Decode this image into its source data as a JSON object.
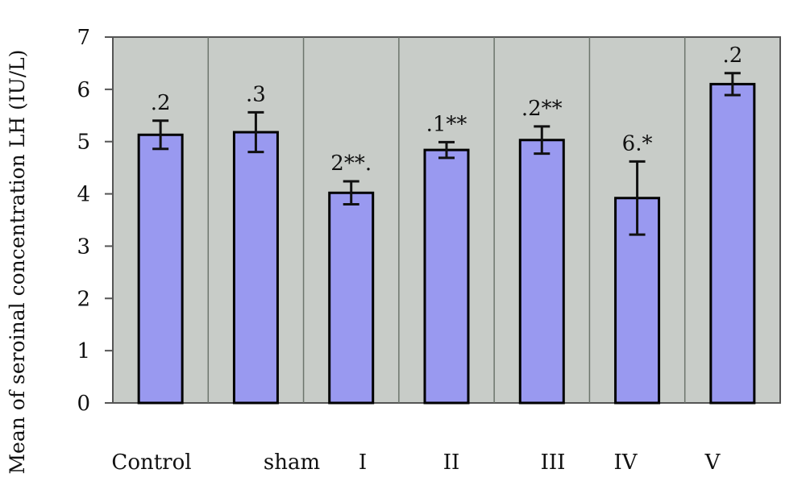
{
  "chart_data": {
    "type": "bar",
    "ylabel": "Mean of seroinal concentration LH (IU/L)",
    "categories": [
      "Control",
      "sham",
      "I",
      "II",
      "III",
      "IV",
      "V"
    ],
    "values": [
      5.13,
      5.18,
      4.02,
      4.84,
      5.03,
      3.92,
      6.1
    ],
    "errors": [
      0.27,
      0.38,
      0.22,
      0.15,
      0.26,
      0.7,
      0.21
    ],
    "annotations": [
      ".2",
      ".3",
      "2**.",
      ".1**",
      ".2**",
      "6.*",
      ".2"
    ],
    "ylim": [
      0,
      7
    ],
    "yticks": [
      "0",
      "1",
      "2",
      "3",
      "4",
      "5",
      "6",
      "7"
    ],
    "grid": "vertical",
    "colors": {
      "bar_fill": "#9999f0",
      "bar_stroke": "#000000",
      "plot_background": "#c8ccc8",
      "grid": "#6d756d",
      "axis": "#555555"
    }
  }
}
